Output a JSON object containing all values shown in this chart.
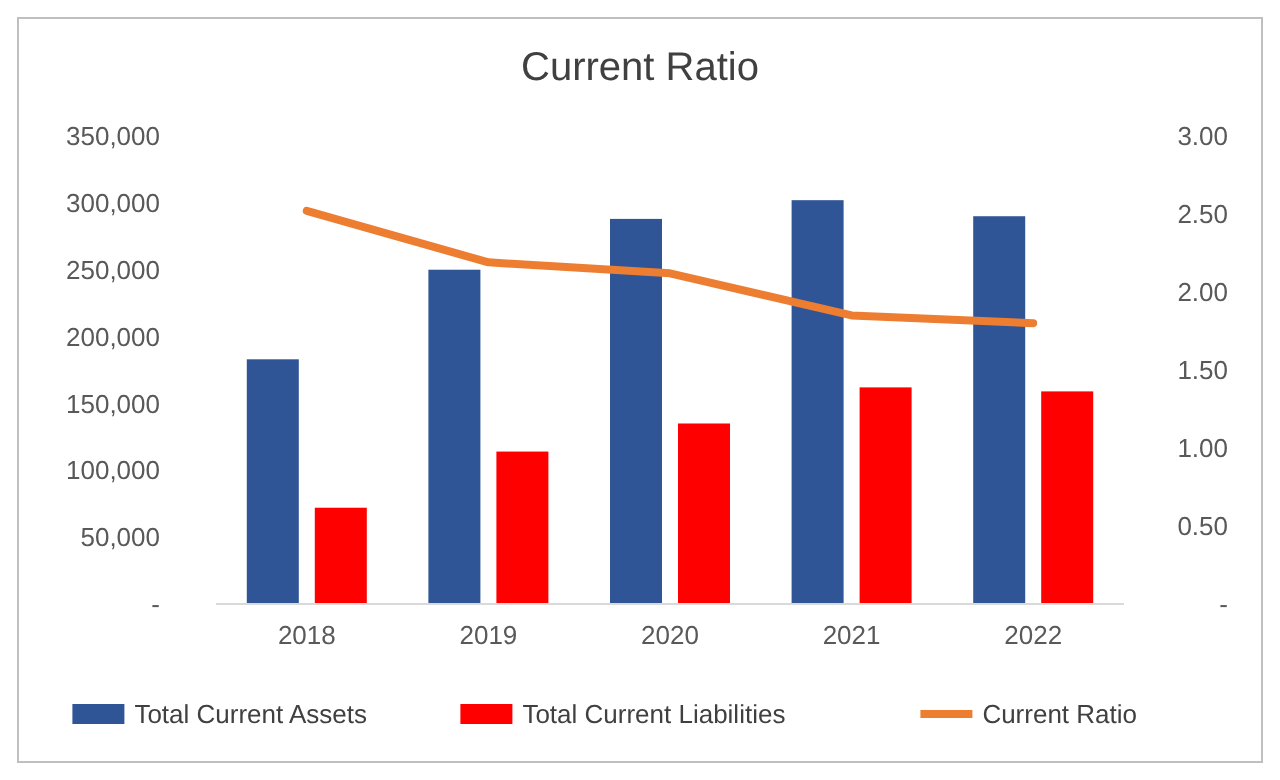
{
  "chart_data": {
    "type": "bar",
    "title": "Current Ratio",
    "categories": [
      "2018",
      "2019",
      "2020",
      "2021",
      "2022"
    ],
    "series": [
      {
        "name": "Total Current Assets",
        "color": "#2f5597",
        "values": [
          183000,
          250000,
          288000,
          302000,
          290000
        ]
      },
      {
        "name": "Total Current Liabilities",
        "color": "#ff0000",
        "values": [
          72000,
          114000,
          135000,
          162000,
          159000
        ]
      },
      {
        "name": "Current Ratio",
        "type": "line",
        "axis": "y2",
        "color": "#ed7d31",
        "values": [
          2.52,
          2.19,
          2.12,
          1.85,
          1.8
        ]
      }
    ],
    "ylim": [
      0,
      350000
    ],
    "yticks": [
      {
        "value": 0,
        "label": "-"
      },
      {
        "value": 50000,
        "label": "50,000"
      },
      {
        "value": 100000,
        "label": "100,000"
      },
      {
        "value": 150000,
        "label": "150,000"
      },
      {
        "value": 200000,
        "label": "200,000"
      },
      {
        "value": 250000,
        "label": "250,000"
      },
      {
        "value": 300000,
        "label": "300,000"
      },
      {
        "value": 350000,
        "label": "350,000"
      }
    ],
    "y2lim": [
      0,
      3
    ],
    "y2ticks": [
      {
        "value": 0,
        "label": "-"
      },
      {
        "value": 0.5,
        "label": "0.50"
      },
      {
        "value": 1,
        "label": "1.00"
      },
      {
        "value": 1.5,
        "label": "1.50"
      },
      {
        "value": 2,
        "label": "2.00"
      },
      {
        "value": 2.5,
        "label": "2.50"
      },
      {
        "value": 3,
        "label": "3.00"
      }
    ],
    "grid": false,
    "legend": "bottom"
  }
}
